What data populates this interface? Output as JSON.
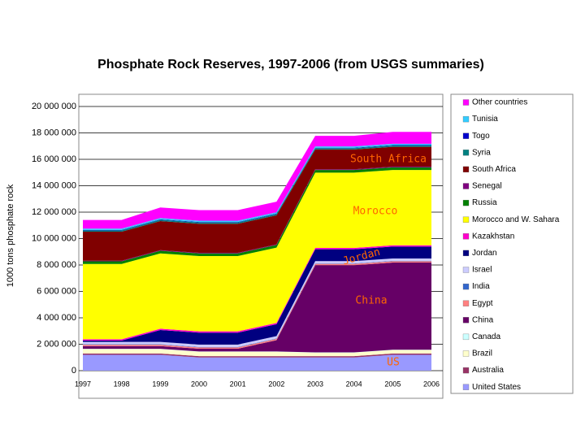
{
  "chart_data": {
    "type": "stacked_area",
    "title": "Phosphate Rock Reserves, 1997-2006 (from USGS summaries)",
    "y_label": "1000 tons phosphate rock",
    "categories": [
      "1997",
      "1998",
      "1999",
      "2000",
      "2001",
      "2002",
      "2003",
      "2004",
      "2005",
      "2006"
    ],
    "ylim": [
      0,
      20000000
    ],
    "yticks": [
      0,
      {
        "value": 2000000,
        "label": "2 000 000"
      },
      {
        "value": 4000000,
        "label": "4 000 000"
      },
      {
        "value": 6000000,
        "label": "6 000 000"
      },
      {
        "value": 8000000,
        "label": "8 000 000"
      },
      {
        "value": 10000000,
        "label": "10 000 000"
      },
      {
        "value": 12000000,
        "label": "12 000 000"
      },
      {
        "value": 14000000,
        "label": "14 000 000"
      },
      {
        "value": 16000000,
        "label": "16 000 000"
      },
      {
        "value": 18000000,
        "label": "18 000 000"
      },
      {
        "value": 20000000,
        "label": "20 000 000"
      }
    ],
    "grid": true,
    "series": [
      {
        "name": "United States",
        "color": "#9999ff",
        "values": [
          1200000,
          1200000,
          1200000,
          1000000,
          1000000,
          1000000,
          1000000,
          1000000,
          1200000,
          1200000
        ]
      },
      {
        "name": "Australia",
        "color": "#993366",
        "values": [
          100000,
          100000,
          100000,
          100000,
          100000,
          100000,
          100000,
          100000,
          100000,
          100000
        ]
      },
      {
        "name": "Brazil",
        "color": "#ffffcc",
        "values": [
          330000,
          330000,
          330000,
          330000,
          330000,
          330000,
          260000,
          260000,
          260000,
          260000
        ]
      },
      {
        "name": "Canada",
        "color": "#ccffff",
        "values": [
          25000,
          25000,
          25000,
          25000,
          25000,
          25000,
          25000,
          25000,
          25000,
          25000
        ]
      },
      {
        "name": "China",
        "color": "#660066",
        "values": [
          210000,
          210000,
          210000,
          210000,
          210000,
          850000,
          6600000,
          6600000,
          6600000,
          6600000
        ]
      },
      {
        "name": "Egypt",
        "color": "#ff8080",
        "values": [
          100000,
          100000,
          100000,
          100000,
          100000,
          100000,
          100000,
          100000,
          100000,
          100000
        ]
      },
      {
        "name": "India",
        "color": "#3366cc",
        "values": [
          30000,
          30000,
          30000,
          30000,
          30000,
          30000,
          30000,
          30000,
          30000,
          30000
        ]
      },
      {
        "name": "Israel",
        "color": "#ccccff",
        "values": [
          180000,
          180000,
          180000,
          180000,
          180000,
          180000,
          180000,
          180000,
          180000,
          180000
        ]
      },
      {
        "name": "Jordan",
        "color": "#000080",
        "values": [
          100000,
          100000,
          900000,
          900000,
          900000,
          900000,
          900000,
          900000,
          900000,
          900000
        ]
      },
      {
        "name": "Kazakhstan",
        "color": "#ff00cc",
        "values": [
          100000,
          100000,
          100000,
          100000,
          100000,
          100000,
          100000,
          100000,
          100000,
          100000
        ]
      },
      {
        "name": "Morocco and W. Sahara",
        "color": "#ffff00",
        "values": [
          5700000,
          5700000,
          5700000,
          5700000,
          5700000,
          5700000,
          5700000,
          5700000,
          5700000,
          5700000
        ]
      },
      {
        "name": "Russia",
        "color": "#008000",
        "values": [
          200000,
          200000,
          200000,
          200000,
          200000,
          200000,
          200000,
          200000,
          200000,
          200000
        ]
      },
      {
        "name": "Senegal",
        "color": "#800080",
        "values": [
          50000,
          50000,
          50000,
          50000,
          50000,
          50000,
          50000,
          50000,
          50000,
          50000
        ]
      },
      {
        "name": "South Africa",
        "color": "#800000",
        "values": [
          2200000,
          2200000,
          2200000,
          2200000,
          2200000,
          2200000,
          1500000,
          1500000,
          1500000,
          1500000
        ]
      },
      {
        "name": "Syria",
        "color": "#008080",
        "values": [
          100000,
          100000,
          100000,
          100000,
          100000,
          100000,
          100000,
          100000,
          100000,
          100000
        ]
      },
      {
        "name": "Togo",
        "color": "#0000cc",
        "values": [
          30000,
          30000,
          30000,
          30000,
          30000,
          30000,
          30000,
          30000,
          30000,
          30000
        ]
      },
      {
        "name": "Tunisia",
        "color": "#33ccff",
        "values": [
          100000,
          100000,
          100000,
          100000,
          100000,
          100000,
          100000,
          100000,
          100000,
          100000
        ]
      },
      {
        "name": "Other countries",
        "color": "#ff00ff",
        "values": [
          650000,
          650000,
          800000,
          800000,
          800000,
          800000,
          800000,
          800000,
          900000,
          900000
        ]
      }
    ],
    "annotations": [
      "South Africa",
      "Morocco",
      "Jordan",
      "China",
      "US"
    ]
  }
}
